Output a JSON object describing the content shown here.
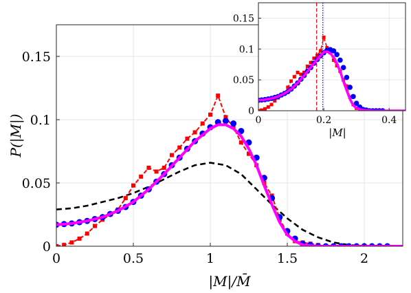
{
  "chart_data": [
    {
      "type": "line",
      "title": "",
      "xlabel": "|M|/M̄",
      "ylabel": "P(|M|)",
      "xlim": [
        0,
        2.25
      ],
      "ylim": [
        0,
        0.175
      ],
      "xticks": [
        0,
        0.5,
        1,
        1.5,
        2
      ],
      "xtick_labels": [
        "0",
        "0.5",
        "1",
        "1.5",
        "2"
      ],
      "yticks": [
        0,
        0.05,
        0.1,
        0.15
      ],
      "ytick_labels": [
        "0",
        "0.05",
        "0.1",
        "0.15"
      ],
      "grid": true,
      "legend": "none",
      "series": [
        {
          "style": "magenta solid line",
          "color": "#ff00ff",
          "x": [
            0,
            0.1,
            0.2,
            0.3,
            0.4,
            0.5,
            0.6,
            0.7,
            0.8,
            0.9,
            1.0,
            1.05,
            1.1,
            1.15,
            1.2,
            1.25,
            1.3,
            1.35,
            1.4,
            1.45,
            1.5,
            1.55,
            1.6,
            1.7,
            1.8,
            2.0,
            2.25
          ],
          "values": [
            0.017,
            0.018,
            0.02,
            0.023,
            0.028,
            0.035,
            0.045,
            0.057,
            0.07,
            0.083,
            0.093,
            0.096,
            0.096,
            0.093,
            0.087,
            0.077,
            0.064,
            0.048,
            0.033,
            0.019,
            0.009,
            0.004,
            0.001,
            0.0,
            0.0,
            0.0,
            0.0
          ]
        },
        {
          "style": "blue circles",
          "color": "#0000ff",
          "x": [
            0,
            0.05,
            0.1,
            0.15,
            0.2,
            0.25,
            0.3,
            0.35,
            0.4,
            0.45,
            0.5,
            0.55,
            0.6,
            0.65,
            0.7,
            0.75,
            0.8,
            0.85,
            0.9,
            0.95,
            1.0,
            1.05,
            1.1,
            1.15,
            1.2,
            1.25,
            1.3,
            1.35,
            1.4,
            1.45,
            1.5,
            1.55,
            1.6,
            1.65,
            1.7,
            1.75,
            1.8,
            1.85,
            1.9,
            1.95,
            2.0,
            2.05,
            2.1,
            2.15
          ],
          "values": [
            0.017,
            0.0175,
            0.018,
            0.019,
            0.02,
            0.0215,
            0.023,
            0.0255,
            0.028,
            0.031,
            0.035,
            0.04,
            0.045,
            0.051,
            0.057,
            0.064,
            0.07,
            0.077,
            0.083,
            0.089,
            0.094,
            0.098,
            0.099,
            0.097,
            0.091,
            0.082,
            0.07,
            0.054,
            0.038,
            0.023,
            0.012,
            0.006,
            0.002,
            0.001,
            0.0,
            0.0,
            0.0,
            0.0,
            0.0,
            0.0,
            0.0,
            0.0,
            0.0,
            0.0
          ]
        },
        {
          "style": "red dashed line with squares",
          "color": "#ff0000",
          "x": [
            0,
            0.05,
            0.1,
            0.15,
            0.2,
            0.25,
            0.3,
            0.35,
            0.4,
            0.45,
            0.5,
            0.55,
            0.6,
            0.65,
            0.7,
            0.75,
            0.8,
            0.85,
            0.9,
            0.95,
            1.0,
            1.05,
            1.1,
            1.15,
            1.2,
            1.25,
            1.3,
            1.35,
            1.4,
            1.45,
            1.5,
            1.55,
            1.6,
            1.65,
            1.7,
            1.75,
            1.8,
            1.85,
            1.9,
            1.95,
            2.0,
            2.05,
            2.1,
            2.15
          ],
          "values": [
            0.0,
            0.001,
            0.003,
            0.006,
            0.01,
            0.016,
            0.021,
            0.025,
            0.029,
            0.038,
            0.048,
            0.055,
            0.062,
            0.059,
            0.062,
            0.072,
            0.078,
            0.085,
            0.09,
            0.097,
            0.104,
            0.119,
            0.102,
            0.094,
            0.082,
            0.073,
            0.064,
            0.05,
            0.04,
            0.022,
            0.01,
            0.004,
            0.003,
            0.002,
            0.001,
            0.0,
            0.0,
            0.0,
            0.0,
            0.0,
            0.0,
            0.0,
            0.0,
            0.0
          ]
        },
        {
          "style": "black dashed line",
          "color": "#000000",
          "x": [
            0,
            0.1,
            0.2,
            0.3,
            0.4,
            0.5,
            0.6,
            0.7,
            0.8,
            0.9,
            1.0,
            1.1,
            1.2,
            1.3,
            1.4,
            1.5,
            1.6,
            1.7,
            1.8,
            1.9,
            2.0
          ],
          "values": [
            0.029,
            0.03,
            0.032,
            0.035,
            0.038,
            0.042,
            0.047,
            0.053,
            0.059,
            0.064,
            0.066,
            0.064,
            0.057,
            0.045,
            0.033,
            0.022,
            0.013,
            0.007,
            0.003,
            0.001,
            0.0
          ]
        }
      ]
    },
    {
      "type": "line",
      "title": "",
      "xlabel": "|M|",
      "ylabel": "",
      "xlim": [
        0,
        0.45
      ],
      "ylim": [
        0,
        0.175
      ],
      "xticks": [
        0,
        0.2,
        0.4
      ],
      "xtick_labels": [
        "0",
        "0.2",
        "0.4"
      ],
      "yticks": [
        0,
        0.05,
        0.1,
        0.15
      ],
      "ytick_labels": [
        "0",
        "0.05",
        "0.1",
        "0.15"
      ],
      "grid": true,
      "legend": "none",
      "vlines": [
        {
          "x": 0.178,
          "color": "#ff0000",
          "style": "dashed"
        },
        {
          "x": 0.197,
          "color": "#0000ff",
          "style": "dotted"
        }
      ],
      "series": [
        {
          "style": "magenta solid line",
          "color": "#ff00ff",
          "x": [
            0,
            0.02,
            0.04,
            0.06,
            0.08,
            0.1,
            0.12,
            0.14,
            0.16,
            0.18,
            0.2,
            0.21,
            0.22,
            0.23,
            0.24,
            0.25,
            0.26,
            0.27,
            0.28,
            0.29,
            0.3,
            0.32,
            0.35,
            0.4,
            0.45
          ],
          "values": [
            0.017,
            0.018,
            0.02,
            0.023,
            0.028,
            0.035,
            0.045,
            0.057,
            0.07,
            0.083,
            0.095,
            0.096,
            0.093,
            0.087,
            0.077,
            0.064,
            0.048,
            0.033,
            0.019,
            0.009,
            0.004,
            0.001,
            0.0,
            0.0,
            0.0
          ]
        },
        {
          "style": "blue circles",
          "color": "#0000ff",
          "x": [
            0,
            0.01,
            0.02,
            0.03,
            0.04,
            0.05,
            0.06,
            0.07,
            0.08,
            0.09,
            0.1,
            0.11,
            0.12,
            0.13,
            0.14,
            0.15,
            0.16,
            0.17,
            0.18,
            0.19,
            0.2,
            0.21,
            0.22,
            0.23,
            0.24,
            0.25,
            0.26,
            0.27,
            0.28,
            0.29,
            0.3,
            0.31,
            0.32,
            0.33,
            0.34,
            0.35,
            0.36,
            0.37,
            0.38
          ],
          "values": [
            0.017,
            0.0175,
            0.018,
            0.019,
            0.02,
            0.0215,
            0.023,
            0.0255,
            0.028,
            0.031,
            0.035,
            0.04,
            0.045,
            0.051,
            0.057,
            0.064,
            0.07,
            0.077,
            0.083,
            0.089,
            0.094,
            0.098,
            0.099,
            0.097,
            0.091,
            0.082,
            0.07,
            0.054,
            0.038,
            0.023,
            0.012,
            0.006,
            0.002,
            0.001,
            0.0,
            0.0,
            0.0,
            0.0,
            0.0
          ]
        },
        {
          "style": "red dashed line with squares",
          "color": "#ff0000",
          "x": [
            0,
            0.01,
            0.02,
            0.03,
            0.04,
            0.05,
            0.06,
            0.07,
            0.08,
            0.09,
            0.1,
            0.11,
            0.12,
            0.13,
            0.14,
            0.15,
            0.16,
            0.17,
            0.18,
            0.19,
            0.2,
            0.21,
            0.22,
            0.23,
            0.24,
            0.25,
            0.26,
            0.27,
            0.28,
            0.29,
            0.3,
            0.31,
            0.32,
            0.33,
            0.34,
            0.35,
            0.36,
            0.37,
            0.38
          ],
          "values": [
            0.0,
            0.001,
            0.003,
            0.006,
            0.01,
            0.016,
            0.021,
            0.025,
            0.029,
            0.038,
            0.048,
            0.055,
            0.062,
            0.059,
            0.062,
            0.072,
            0.078,
            0.085,
            0.09,
            0.097,
            0.119,
            0.102,
            0.094,
            0.082,
            0.073,
            0.064,
            0.05,
            0.04,
            0.022,
            0.01,
            0.004,
            0.003,
            0.002,
            0.001,
            0.0,
            0.0,
            0.0,
            0.0,
            0.0
          ]
        }
      ]
    }
  ]
}
